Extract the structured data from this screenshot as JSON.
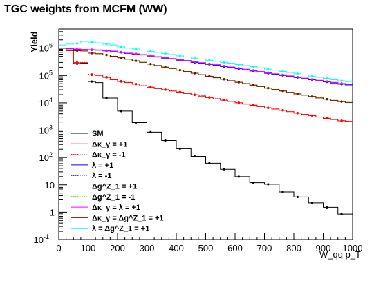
{
  "title": "TGC weights from MCFM (WW)",
  "chart_data": {
    "type": "line",
    "title": "TGC weights from MCFM (WW)",
    "xlabel": "W_qq p_T",
    "ylabel": "Yield",
    "xlim": [
      0,
      1000
    ],
    "ylim": [
      0.1,
      5000000
    ],
    "ylog": true,
    "grid": false,
    "legend_position": "bottom-left",
    "x_ticks": [
      0,
      100,
      200,
      300,
      400,
      500,
      600,
      700,
      800,
      900,
      1000
    ],
    "y_ticks": [
      {
        "value": 0.1,
        "label": "10",
        "exp": "-1"
      },
      {
        "value": 1,
        "label": "1",
        "exp": ""
      },
      {
        "value": 10,
        "label": "10",
        "exp": ""
      },
      {
        "value": 100,
        "label": "10",
        "exp": "2"
      },
      {
        "value": 1000,
        "label": "10",
        "exp": "3"
      },
      {
        "value": 10000,
        "label": "10",
        "exp": "4"
      },
      {
        "value": 100000,
        "label": "10",
        "exp": "5"
      },
      {
        "value": 1000000,
        "label": "10",
        "exp": "6"
      }
    ],
    "bin_width": 25,
    "x": [
      12.5,
      37.5,
      62.5,
      87.5,
      112.5,
      137.5,
      162.5,
      187.5,
      212.5,
      237.5,
      262.5,
      287.5,
      312.5,
      337.5,
      362.5,
      387.5,
      412.5,
      437.5,
      462.5,
      487.5,
      512.5,
      537.5,
      562.5,
      587.5,
      612.5,
      637.5,
      662.5,
      687.5,
      712.5,
      737.5,
      762.5,
      787.5,
      812.5,
      837.5,
      862.5,
      887.5,
      912.5,
      937.5,
      962.5,
      987.5
    ],
    "series": [
      {
        "name": "SM",
        "color": "#000000",
        "dash": "solid",
        "values": [
          1000000,
          800000,
          270000,
          280000,
          60000,
          55000,
          15000,
          15000,
          5000,
          5000,
          1900,
          1900,
          850,
          850,
          420,
          420,
          210,
          210,
          110,
          110,
          62,
          62,
          37,
          37,
          20,
          20,
          12,
          12,
          10.5,
          10.5,
          5.5,
          5.5,
          3.6,
          3.6,
          2.2,
          2.2,
          1.5,
          1.5,
          0.85,
          0.85
        ]
      },
      {
        "name": "Δκ_γ = +1",
        "color": "#ff0000",
        "dash": "solid",
        "values": [
          1000000,
          800000,
          290000,
          295000,
          105000,
          100000,
          85000,
          70000,
          60000,
          55000,
          48000,
          42000,
          37000,
          33000,
          30000,
          27000,
          24500,
          22000,
          19500,
          17500,
          15500,
          14000,
          12500,
          11300,
          10000,
          9000,
          8100,
          7300,
          6500,
          5900,
          5300,
          4750,
          4200,
          3800,
          3400,
          3000,
          2700,
          2450,
          2200,
          2100
        ]
      },
      {
        "name": "Δκ_γ = -1",
        "color": "#ff0000",
        "dash": "dot",
        "values": [
          1000000,
          800000,
          300000,
          305000,
          110000,
          105000,
          88000,
          72000,
          62000,
          56000,
          49000,
          43000,
          38000,
          34000,
          30500,
          27500,
          25000,
          22500,
          20000,
          18000,
          16000,
          14300,
          12800,
          11500,
          10200,
          9200,
          8300,
          7400,
          6600,
          6000,
          5400,
          4850,
          4300,
          3850,
          3450,
          3050,
          2750,
          2500,
          2250,
          2150
        ]
      },
      {
        "name": "λ = +1",
        "color": "#0000ff",
        "dash": "solid",
        "values": [
          1000000,
          950000,
          900000,
          880000,
          860000,
          840000,
          790000,
          760000,
          700000,
          640000,
          600000,
          560000,
          510000,
          470000,
          430000,
          400000,
          360000,
          340000,
          300000,
          280000,
          255000,
          235000,
          210000,
          195000,
          175000,
          160000,
          145000,
          132000,
          120000,
          110000,
          100000,
          92000,
          84000,
          76000,
          70000,
          64000,
          58000,
          53000,
          48000,
          45000
        ]
      },
      {
        "name": "λ = -1",
        "color": "#0000ff",
        "dash": "dot",
        "values": [
          1000000,
          960000,
          910000,
          890000,
          870000,
          850000,
          800000,
          770000,
          710000,
          650000,
          610000,
          570000,
          520000,
          480000,
          440000,
          410000,
          370000,
          345000,
          305000,
          285000,
          260000,
          240000,
          215000,
          198000,
          178000,
          163000,
          148000,
          134000,
          122000,
          112000,
          102000,
          93000,
          85000,
          77000,
          71000,
          65000,
          59000,
          54000,
          49000,
          46000
        ]
      },
      {
        "name": "Δg^Z_1 = +1",
        "color": "#00ff00",
        "dash": "solid",
        "values": [
          1000000,
          850000,
          800000,
          780000,
          650000,
          620000,
          560000,
          500000,
          440000,
          390000,
          340000,
          300000,
          260000,
          230000,
          200000,
          178000,
          155000,
          138000,
          120000,
          106000,
          93000,
          82000,
          72000,
          64000,
          56000,
          50000,
          44000,
          39000,
          34000,
          30500,
          27000,
          24000,
          21000,
          19000,
          17000,
          15000,
          13500,
          12200,
          11000,
          10200
        ]
      },
      {
        "name": "Δg^Z_1 = -1",
        "color": "#00ff00",
        "dash": "dot",
        "values": [
          1000000,
          860000,
          810000,
          790000,
          660000,
          630000,
          570000,
          510000,
          450000,
          395000,
          345000,
          305000,
          265000,
          235000,
          205000,
          182000,
          158000,
          140000,
          122000,
          108000,
          95000,
          84000,
          74000,
          65000,
          57000,
          51000,
          45000,
          40000,
          35000,
          31000,
          27500,
          24500,
          21500,
          19300,
          17300,
          15300,
          13700,
          12400,
          11200,
          10400
        ]
      },
      {
        "name": "Δκ_γ = λ = +1",
        "color": "#ff00ff",
        "dash": "solid",
        "values": [
          1000000,
          960000,
          930000,
          900000,
          880000,
          860000,
          810000,
          780000,
          720000,
          660000,
          620000,
          580000,
          530000,
          490000,
          450000,
          420000,
          380000,
          355000,
          315000,
          295000,
          268000,
          248000,
          222000,
          205000,
          185000,
          170000,
          154000,
          140000,
          127000,
          116000,
          106000,
          97000,
          88000,
          80000,
          73000,
          67000,
          61000,
          56000,
          51000,
          48000
        ]
      },
      {
        "name": "Δκ_γ = Δg^Z_1 = +1",
        "color": "#990000",
        "dash": "solid",
        "values": [
          1000000,
          855000,
          805000,
          785000,
          655000,
          625000,
          565000,
          505000,
          445000,
          392000,
          342000,
          302000,
          262000,
          232000,
          202000,
          180000,
          156000,
          139000,
          121000,
          107000,
          94000,
          83000,
          73000,
          64500,
          56500,
          50500,
          44500,
          39500,
          34500,
          30800,
          27200,
          24200,
          21200,
          19100,
          17100,
          15100,
          13600,
          12300,
          11100,
          10300
        ]
      },
      {
        "name": "λ = Δg^Z_1 = +1",
        "color": "#00ffff",
        "dash": "solid",
        "values": [
          1300000,
          1400000,
          1500000,
          1750000,
          1650000,
          1550000,
          1400000,
          1300000,
          1100000,
          1000000,
          930000,
          850000,
          770000,
          700000,
          630000,
          580000,
          520000,
          480000,
          430000,
          400000,
          360000,
          330000,
          300000,
          280000,
          250000,
          230000,
          210000,
          190000,
          170000,
          155000,
          140000,
          128000,
          116000,
          105000,
          95000,
          86000,
          78000,
          70000,
          64000,
          60000
        ]
      }
    ]
  }
}
